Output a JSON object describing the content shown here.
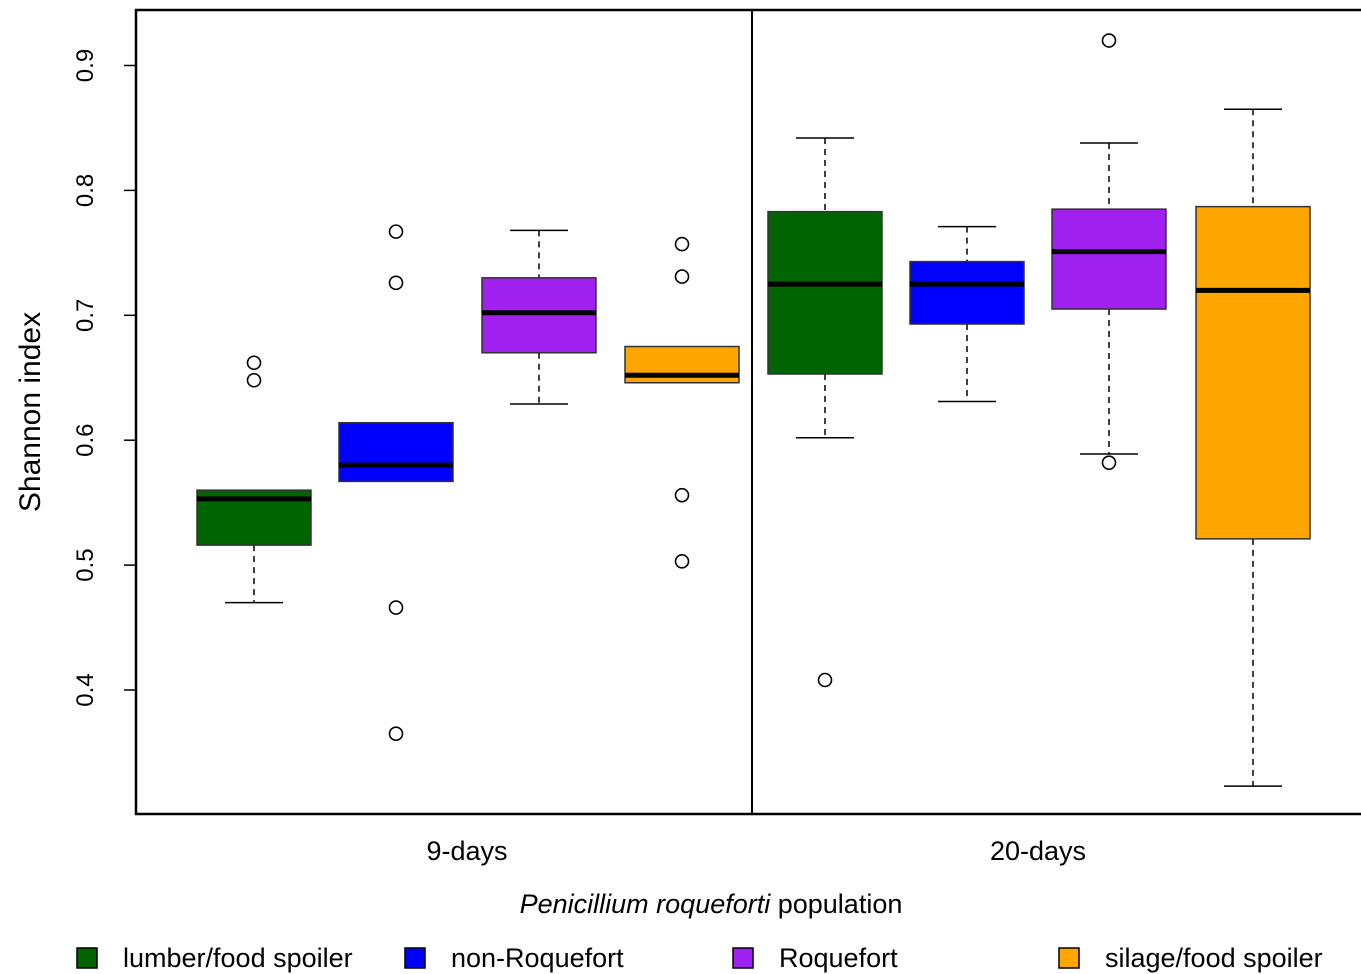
{
  "chart_data": {
    "type": "boxplot",
    "title": "",
    "xlabel_italic": "Penicillium roqueforti",
    "xlabel_rest": " population",
    "ylabel": "Shannon index",
    "ylim": [
      0.3,
      0.945
    ],
    "yticks": [
      0.4,
      0.5,
      0.6,
      0.7,
      0.8,
      0.9
    ],
    "ytick_labels": [
      "0.4",
      "0.5",
      "0.6",
      "0.7",
      "0.8",
      "0.9"
    ],
    "grid": false,
    "legend_position": "bottom",
    "groups": [
      "9-days",
      "20-days"
    ],
    "series": [
      {
        "name": "lumber/food spoiler",
        "color": "#006400"
      },
      {
        "name": "non-Roquefort",
        "color": "#0000FF"
      },
      {
        "name": "Roquefort",
        "color": "#A020F0"
      },
      {
        "name": "silage/food spoiler",
        "color": "#FFA500"
      }
    ],
    "boxes": [
      {
        "group": 0,
        "series": 0,
        "whislo": 0.47,
        "q1": 0.516,
        "med": 0.553,
        "q3": 0.56,
        "whishi": 0.56,
        "fliers": [
          0.648,
          0.662
        ]
      },
      {
        "group": 0,
        "series": 1,
        "whislo": 0.567,
        "q1": 0.567,
        "med": 0.58,
        "q3": 0.614,
        "whishi": 0.614,
        "fliers": [
          0.365,
          0.466,
          0.726,
          0.767
        ]
      },
      {
        "group": 0,
        "series": 2,
        "whislo": 0.629,
        "q1": 0.67,
        "med": 0.702,
        "q3": 0.73,
        "whishi": 0.768,
        "fliers": []
      },
      {
        "group": 0,
        "series": 3,
        "whislo": 0.646,
        "q1": 0.646,
        "med": 0.652,
        "q3": 0.675,
        "whishi": 0.675,
        "fliers": [
          0.503,
          0.556,
          0.731,
          0.757
        ]
      },
      {
        "group": 1,
        "series": 0,
        "whislo": 0.602,
        "q1": 0.653,
        "med": 0.725,
        "q3": 0.783,
        "whishi": 0.842,
        "fliers": [
          0.408
        ]
      },
      {
        "group": 1,
        "series": 1,
        "whislo": 0.631,
        "q1": 0.693,
        "med": 0.725,
        "q3": 0.743,
        "whishi": 0.771,
        "fliers": []
      },
      {
        "group": 1,
        "series": 2,
        "whislo": 0.589,
        "q1": 0.705,
        "med": 0.751,
        "q3": 0.785,
        "whishi": 0.838,
        "fliers": [
          0.582,
          0.92
        ]
      },
      {
        "group": 1,
        "series": 3,
        "whislo": 0.323,
        "q1": 0.521,
        "med": 0.72,
        "q3": 0.787,
        "whishi": 0.865,
        "fliers": []
      }
    ]
  }
}
